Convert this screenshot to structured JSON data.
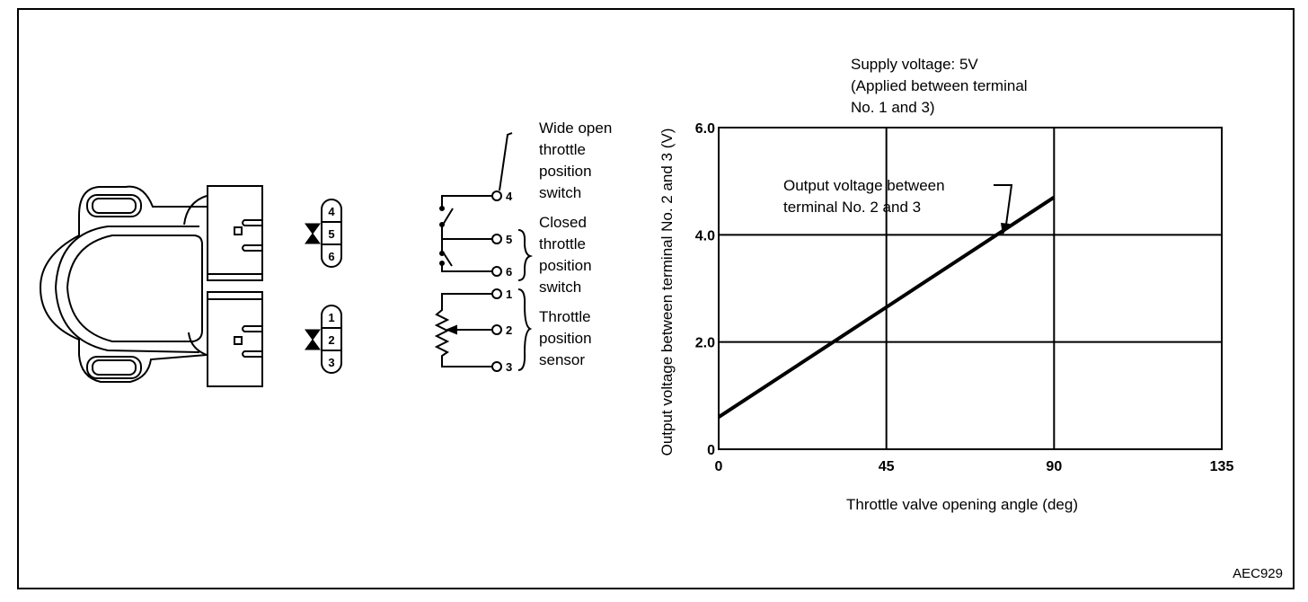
{
  "figure_id": "AEC929",
  "connector": {
    "upper_pins": [
      "4",
      "5",
      "6"
    ],
    "lower_pins": [
      "1",
      "2",
      "3"
    ]
  },
  "circuit": {
    "terminals": [
      "4",
      "5",
      "6",
      "1",
      "2",
      "3"
    ],
    "labels": {
      "wot": [
        "Wide open",
        "throttle",
        "position",
        "switch"
      ],
      "closed": [
        "Closed",
        "throttle",
        "position",
        "switch"
      ],
      "tps": [
        "Throttle",
        "position",
        "sensor"
      ]
    }
  },
  "chart_data": {
    "type": "line",
    "note": [
      "Supply voltage: 5V",
      "(Applied between terminal",
      "No. 1 and 3)"
    ],
    "xlabel": "Throttle valve opening angle (deg)",
    "ylabel": "Output voltage between terminal No. 2 and 3 (V)",
    "xlim": [
      0,
      135
    ],
    "ylim": [
      0,
      6.0
    ],
    "xticks": [
      "0",
      "45",
      "90",
      "135"
    ],
    "yticks": [
      "0",
      "2.0",
      "4.0",
      "6.0"
    ],
    "grid": true,
    "annotation": [
      "Output voltage between",
      "terminal No. 2 and 3"
    ],
    "series": [
      {
        "x": [
          0,
          45,
          90
        ],
        "y": [
          0.6,
          2.65,
          4.7
        ]
      }
    ]
  }
}
